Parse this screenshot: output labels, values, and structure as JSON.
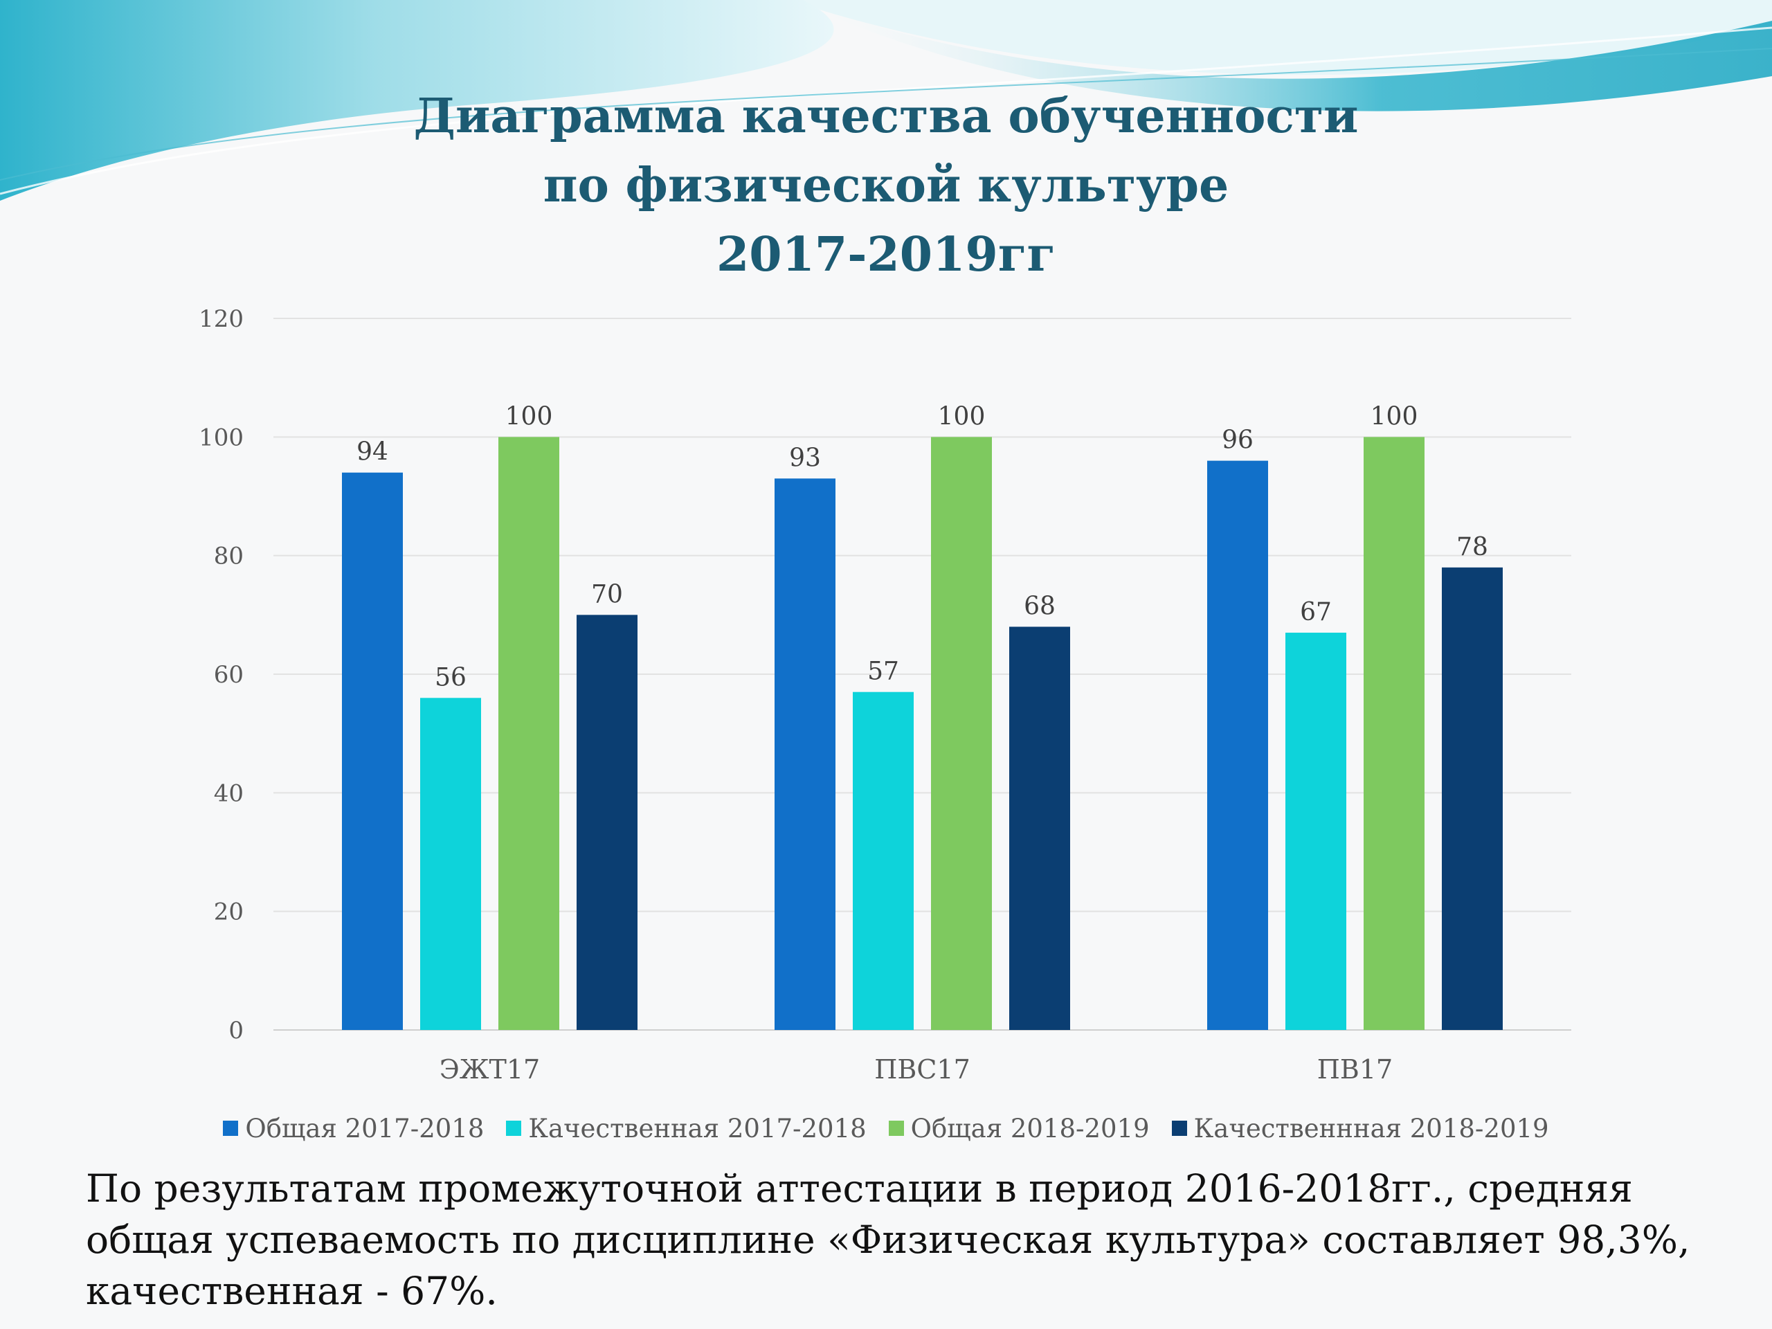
{
  "title": {
    "line1": "Диаграмма качества обученности",
    "line2": "по физической культуре",
    "line3": "2017-2019гг"
  },
  "note": "По результатам промежуточной аттестации в период 2016-2018гг., средняя общая успеваемость по дисциплине «Физическая культура» составляет 98,3%, качественная - 67%.",
  "colors": {
    "title": "#1c5b73",
    "wave_light": "#7fd6e3",
    "wave_dark": "#2fb3cc"
  },
  "chart_data": {
    "type": "bar",
    "title": "",
    "xlabel": "",
    "ylabel": "",
    "ylim": [
      0,
      120
    ],
    "yticks": [
      0,
      20,
      40,
      60,
      80,
      100,
      120
    ],
    "grid": true,
    "legend_position": "bottom",
    "categories": [
      "ЭЖТ17",
      "ПВС17",
      "ПВ17"
    ],
    "series": [
      {
        "name": "Общая 2017-2018",
        "color": "#1170c9",
        "values": [
          94,
          93,
          96
        ]
      },
      {
        "name": "Качественная 2017-2018",
        "color": "#0ed3da",
        "values": [
          56,
          57,
          67
        ]
      },
      {
        "name": "Общая 2018-2019",
        "color": "#7ec95f",
        "values": [
          100,
          100,
          100
        ]
      },
      {
        "name": "Качественнная 2018-2019",
        "color": "#0b3e72",
        "values": [
          70,
          68,
          78
        ]
      }
    ]
  }
}
